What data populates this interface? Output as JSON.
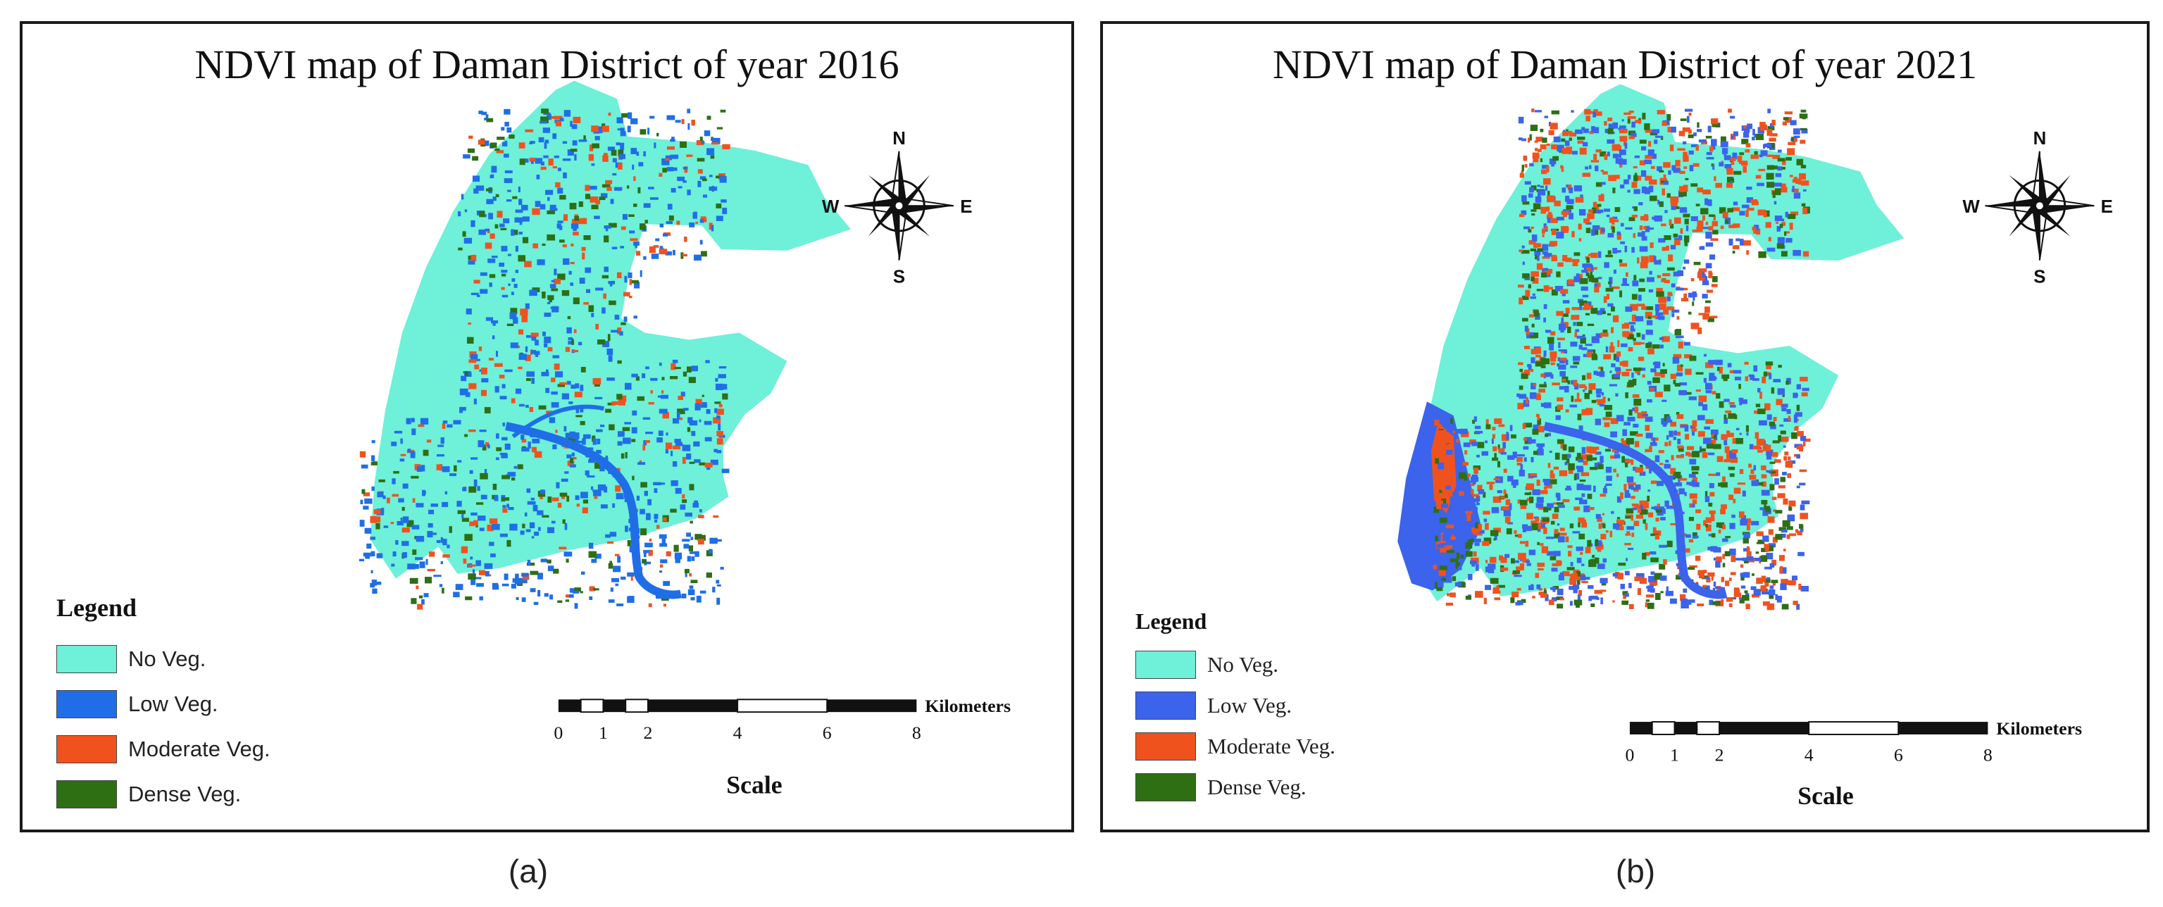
{
  "maps": [
    {
      "title": "NDVI map of Daman District of year 2016",
      "caption": "(a)",
      "legend": {
        "title": "Legend",
        "items": [
          {
            "label": "No Veg.",
            "color": "#6ff0d8"
          },
          {
            "label": "Low Veg.",
            "color": "#1f6ee8"
          },
          {
            "label": "Moderate Veg.",
            "color": "#f0521e"
          },
          {
            "label": "Dense Veg.",
            "color": "#2e6f14"
          }
        ]
      },
      "compass": {
        "n": "N",
        "s": "S",
        "e": "E",
        "w": "W"
      },
      "scale": {
        "ticks": [
          "0",
          "1",
          "2",
          "4",
          "6",
          "8"
        ],
        "unit": "Kilometers",
        "title": "Scale"
      }
    },
    {
      "title": "NDVI map of Daman District of year 2021",
      "caption": "(b)",
      "legend": {
        "title": "Legend",
        "items": [
          {
            "label": "No Veg.",
            "color": "#6ff0d8"
          },
          {
            "label": "Low Veg.",
            "color": "#3b63ec"
          },
          {
            "label": "Moderate Veg.",
            "color": "#f0521e"
          },
          {
            "label": "Dense Veg.",
            "color": "#2e6f14"
          }
        ]
      },
      "compass": {
        "n": "N",
        "s": "S",
        "e": "E",
        "w": "W"
      },
      "scale": {
        "ticks": [
          "0",
          "1",
          "2",
          "4",
          "6",
          "8"
        ],
        "unit": "Kilometers",
        "title": "Scale"
      }
    }
  ]
}
